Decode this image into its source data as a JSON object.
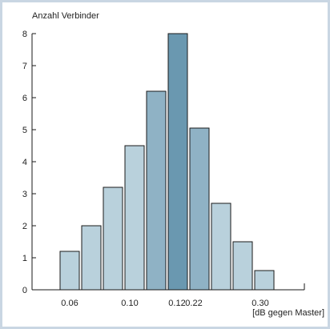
{
  "chart_data": {
    "type": "bar",
    "title": "",
    "ylabel": "Anzahl Verbinder",
    "xlabel": "[dB gegen Master]",
    "ylim": [
      0,
      8
    ],
    "yticks": [
      "0",
      "1",
      "2",
      "3",
      "4",
      "5",
      "6",
      "7",
      "8"
    ],
    "x_tick_labels": [
      "0.06",
      "0.10",
      "0.12",
      "0.22",
      "0.30"
    ],
    "values": [
      1.2,
      2.0,
      3.2,
      4.5,
      6.2,
      8.0,
      5.05,
      2.7,
      1.5,
      0.6
    ],
    "bar_colors": [
      "#b9d1dc",
      "#b9d1dc",
      "#b9d1dc",
      "#b9d1dc",
      "#8fb2c5",
      "#6a98b0",
      "#8fb2c5",
      "#b9d1dc",
      "#b9d1dc",
      "#b9d1dc"
    ],
    "grid": false
  }
}
